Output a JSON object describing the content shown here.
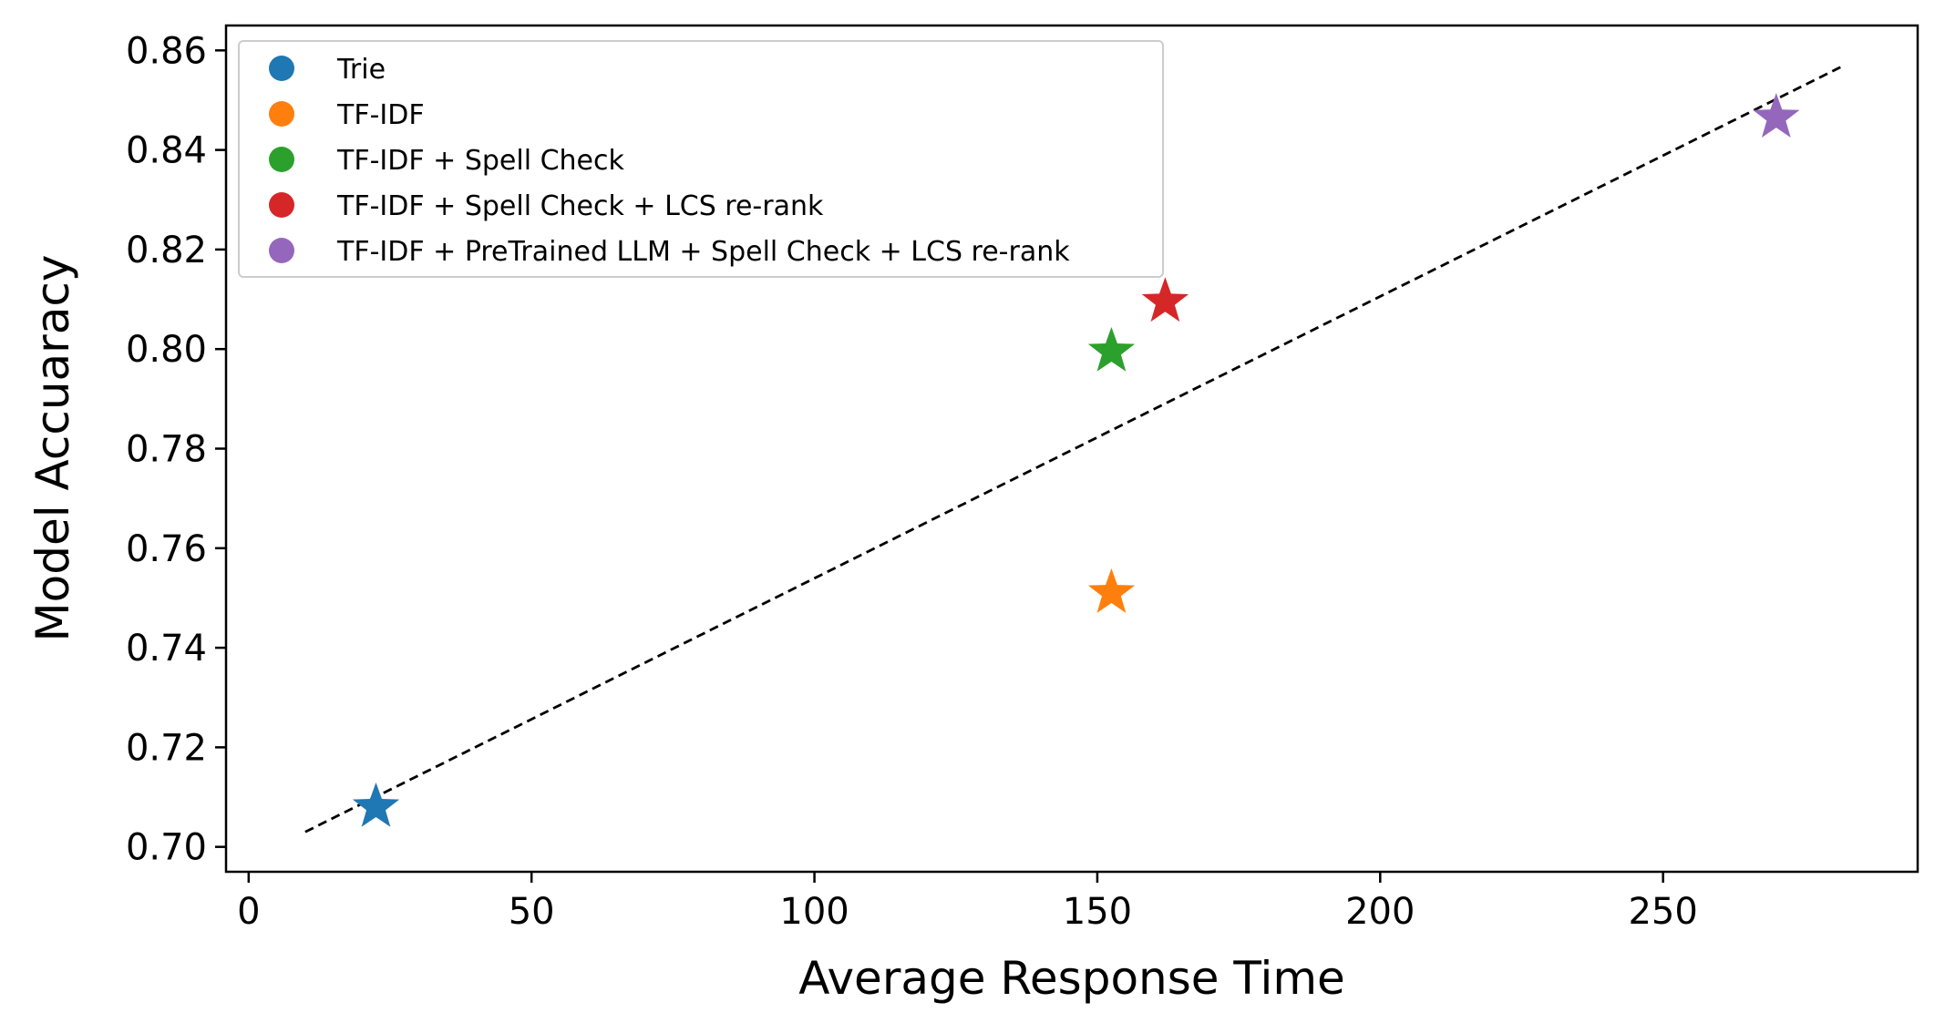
{
  "chart_data": {
    "type": "scatter",
    "title": "",
    "xlabel": "Average Response Time",
    "ylabel": "Model Accuaracy",
    "xlim": [
      -4,
      295
    ],
    "ylim": [
      0.695,
      0.865
    ],
    "x_ticks": [
      0,
      50,
      100,
      150,
      200,
      250
    ],
    "y_ticks": [
      0.7,
      0.72,
      0.74,
      0.76,
      0.78,
      0.8,
      0.82,
      0.84,
      0.86
    ],
    "x_tick_labels": [
      "0",
      "50",
      "100",
      "150",
      "200",
      "250"
    ],
    "y_tick_labels": [
      "0.70",
      "0.72",
      "0.74",
      "0.76",
      "0.78",
      "0.80",
      "0.82",
      "0.84",
      "0.86"
    ],
    "grid": false,
    "legend_position": "top-left",
    "marker": "star",
    "series": [
      {
        "name": "Trie",
        "color": "#1f77b4",
        "x": 22.5,
        "y": 0.708
      },
      {
        "name": "TF-IDF",
        "color": "#ff7f0e",
        "x": 152.5,
        "y": 0.751
      },
      {
        "name": "TF-IDF + Spell Check",
        "color": "#2ca02c",
        "x": 152.5,
        "y": 0.7995
      },
      {
        "name": "TF-IDF + Spell Check + LCS re-rank",
        "color": "#d62728",
        "x": 162,
        "y": 0.8095
      },
      {
        "name": "TF-IDF + PreTrained LLM + Spell Check + LCS re-rank",
        "color": "#9467bd",
        "x": 270,
        "y": 0.8465
      }
    ],
    "trend_line": {
      "style": "dashed",
      "color": "#000000",
      "x": [
        10,
        282
      ],
      "y": [
        0.703,
        0.857
      ]
    }
  }
}
